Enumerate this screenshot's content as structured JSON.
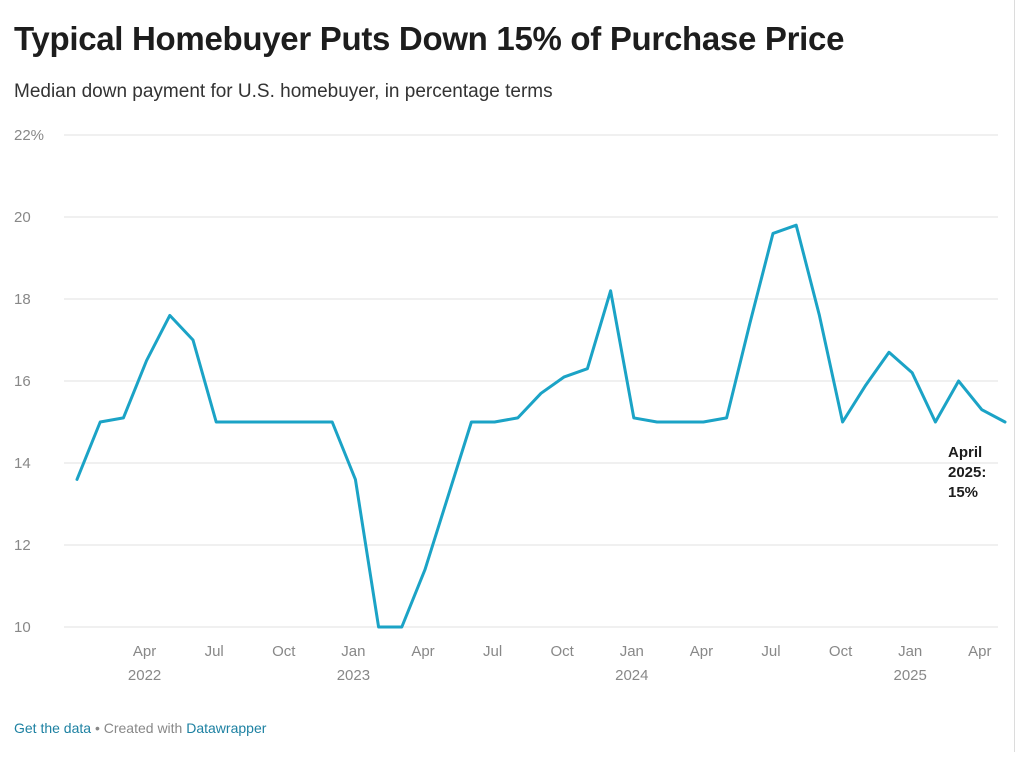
{
  "header": {
    "title": "Typical Homebuyer Puts Down 15% of Purchase Price",
    "subtitle": "Median down payment for U.S. homebuyer, in percentage terms"
  },
  "footer": {
    "get_data_label": "Get the data",
    "separator": " • Created with ",
    "created_with_link": "Datawrapper"
  },
  "colors": {
    "line": "#1ba3c6",
    "grid": "#e2e2e2",
    "tick_text": "#888888",
    "annotation_text": "#1d1d1d"
  },
  "chart_data": {
    "type": "line",
    "title": "Typical Homebuyer Puts Down 15% of Purchase Price",
    "subtitle": "Median down payment for U.S. homebuyer, in percentage terms",
    "xlabel": "",
    "ylabel": "",
    "ylim": [
      10,
      22
    ],
    "xlim": [
      "2022-01",
      "2025-05"
    ],
    "grid": true,
    "y_ticks": [
      {
        "value": 22,
        "label": "22%"
      },
      {
        "value": 20,
        "label": "20"
      },
      {
        "value": 18,
        "label": "18"
      },
      {
        "value": 16,
        "label": "16"
      },
      {
        "value": 14,
        "label": "14"
      },
      {
        "value": 12,
        "label": "12"
      },
      {
        "value": 10,
        "label": "10"
      }
    ],
    "x_ticks": [
      {
        "date": "2022-04",
        "label": "Apr",
        "year": "2022"
      },
      {
        "date": "2022-07",
        "label": "Jul",
        "year": ""
      },
      {
        "date": "2022-10",
        "label": "Oct",
        "year": ""
      },
      {
        "date": "2023-01",
        "label": "Jan",
        "year": "2023"
      },
      {
        "date": "2023-04",
        "label": "Apr",
        "year": ""
      },
      {
        "date": "2023-07",
        "label": "Jul",
        "year": ""
      },
      {
        "date": "2023-10",
        "label": "Oct",
        "year": ""
      },
      {
        "date": "2024-01",
        "label": "Jan",
        "year": "2024"
      },
      {
        "date": "2024-04",
        "label": "Apr",
        "year": ""
      },
      {
        "date": "2024-07",
        "label": "Jul",
        "year": ""
      },
      {
        "date": "2024-10",
        "label": "Oct",
        "year": ""
      },
      {
        "date": "2025-01",
        "label": "Jan",
        "year": "2025"
      },
      {
        "date": "2025-04",
        "label": "Apr",
        "year": ""
      }
    ],
    "series": [
      {
        "x": [
          "2022-01",
          "2022-02",
          "2022-03",
          "2022-04",
          "2022-05",
          "2022-06",
          "2022-07",
          "2022-08",
          "2022-09",
          "2022-10",
          "2022-11",
          "2022-12",
          "2023-01",
          "2023-02",
          "2023-03",
          "2023-04",
          "2023-05",
          "2023-06",
          "2023-07",
          "2023-08",
          "2023-09",
          "2023-10",
          "2023-11",
          "2023-12",
          "2024-01",
          "2024-02",
          "2024-03",
          "2024-04",
          "2024-05",
          "2024-06",
          "2024-07",
          "2024-08",
          "2024-09",
          "2024-10",
          "2024-11",
          "2024-12",
          "2025-01",
          "2025-02",
          "2025-03",
          "2025-04",
          "2025-05"
        ],
        "values": [
          13.6,
          15.0,
          15.1,
          16.5,
          17.6,
          17.0,
          15.0,
          15.0,
          15.0,
          15.0,
          15.0,
          15.0,
          13.6,
          10.0,
          10.0,
          11.4,
          13.2,
          15.0,
          15.0,
          15.1,
          15.7,
          16.1,
          16.3,
          18.2,
          15.1,
          15.0,
          15.0,
          15.0,
          15.1,
          17.4,
          19.6,
          19.8,
          17.6,
          15.0,
          15.9,
          16.7,
          16.2,
          15.0,
          16.0,
          15.3,
          15.0
        ]
      }
    ],
    "annotations": [
      {
        "lines": [
          "April",
          "2025:",
          "15%"
        ],
        "x": "2025-05",
        "y": 15
      }
    ]
  }
}
